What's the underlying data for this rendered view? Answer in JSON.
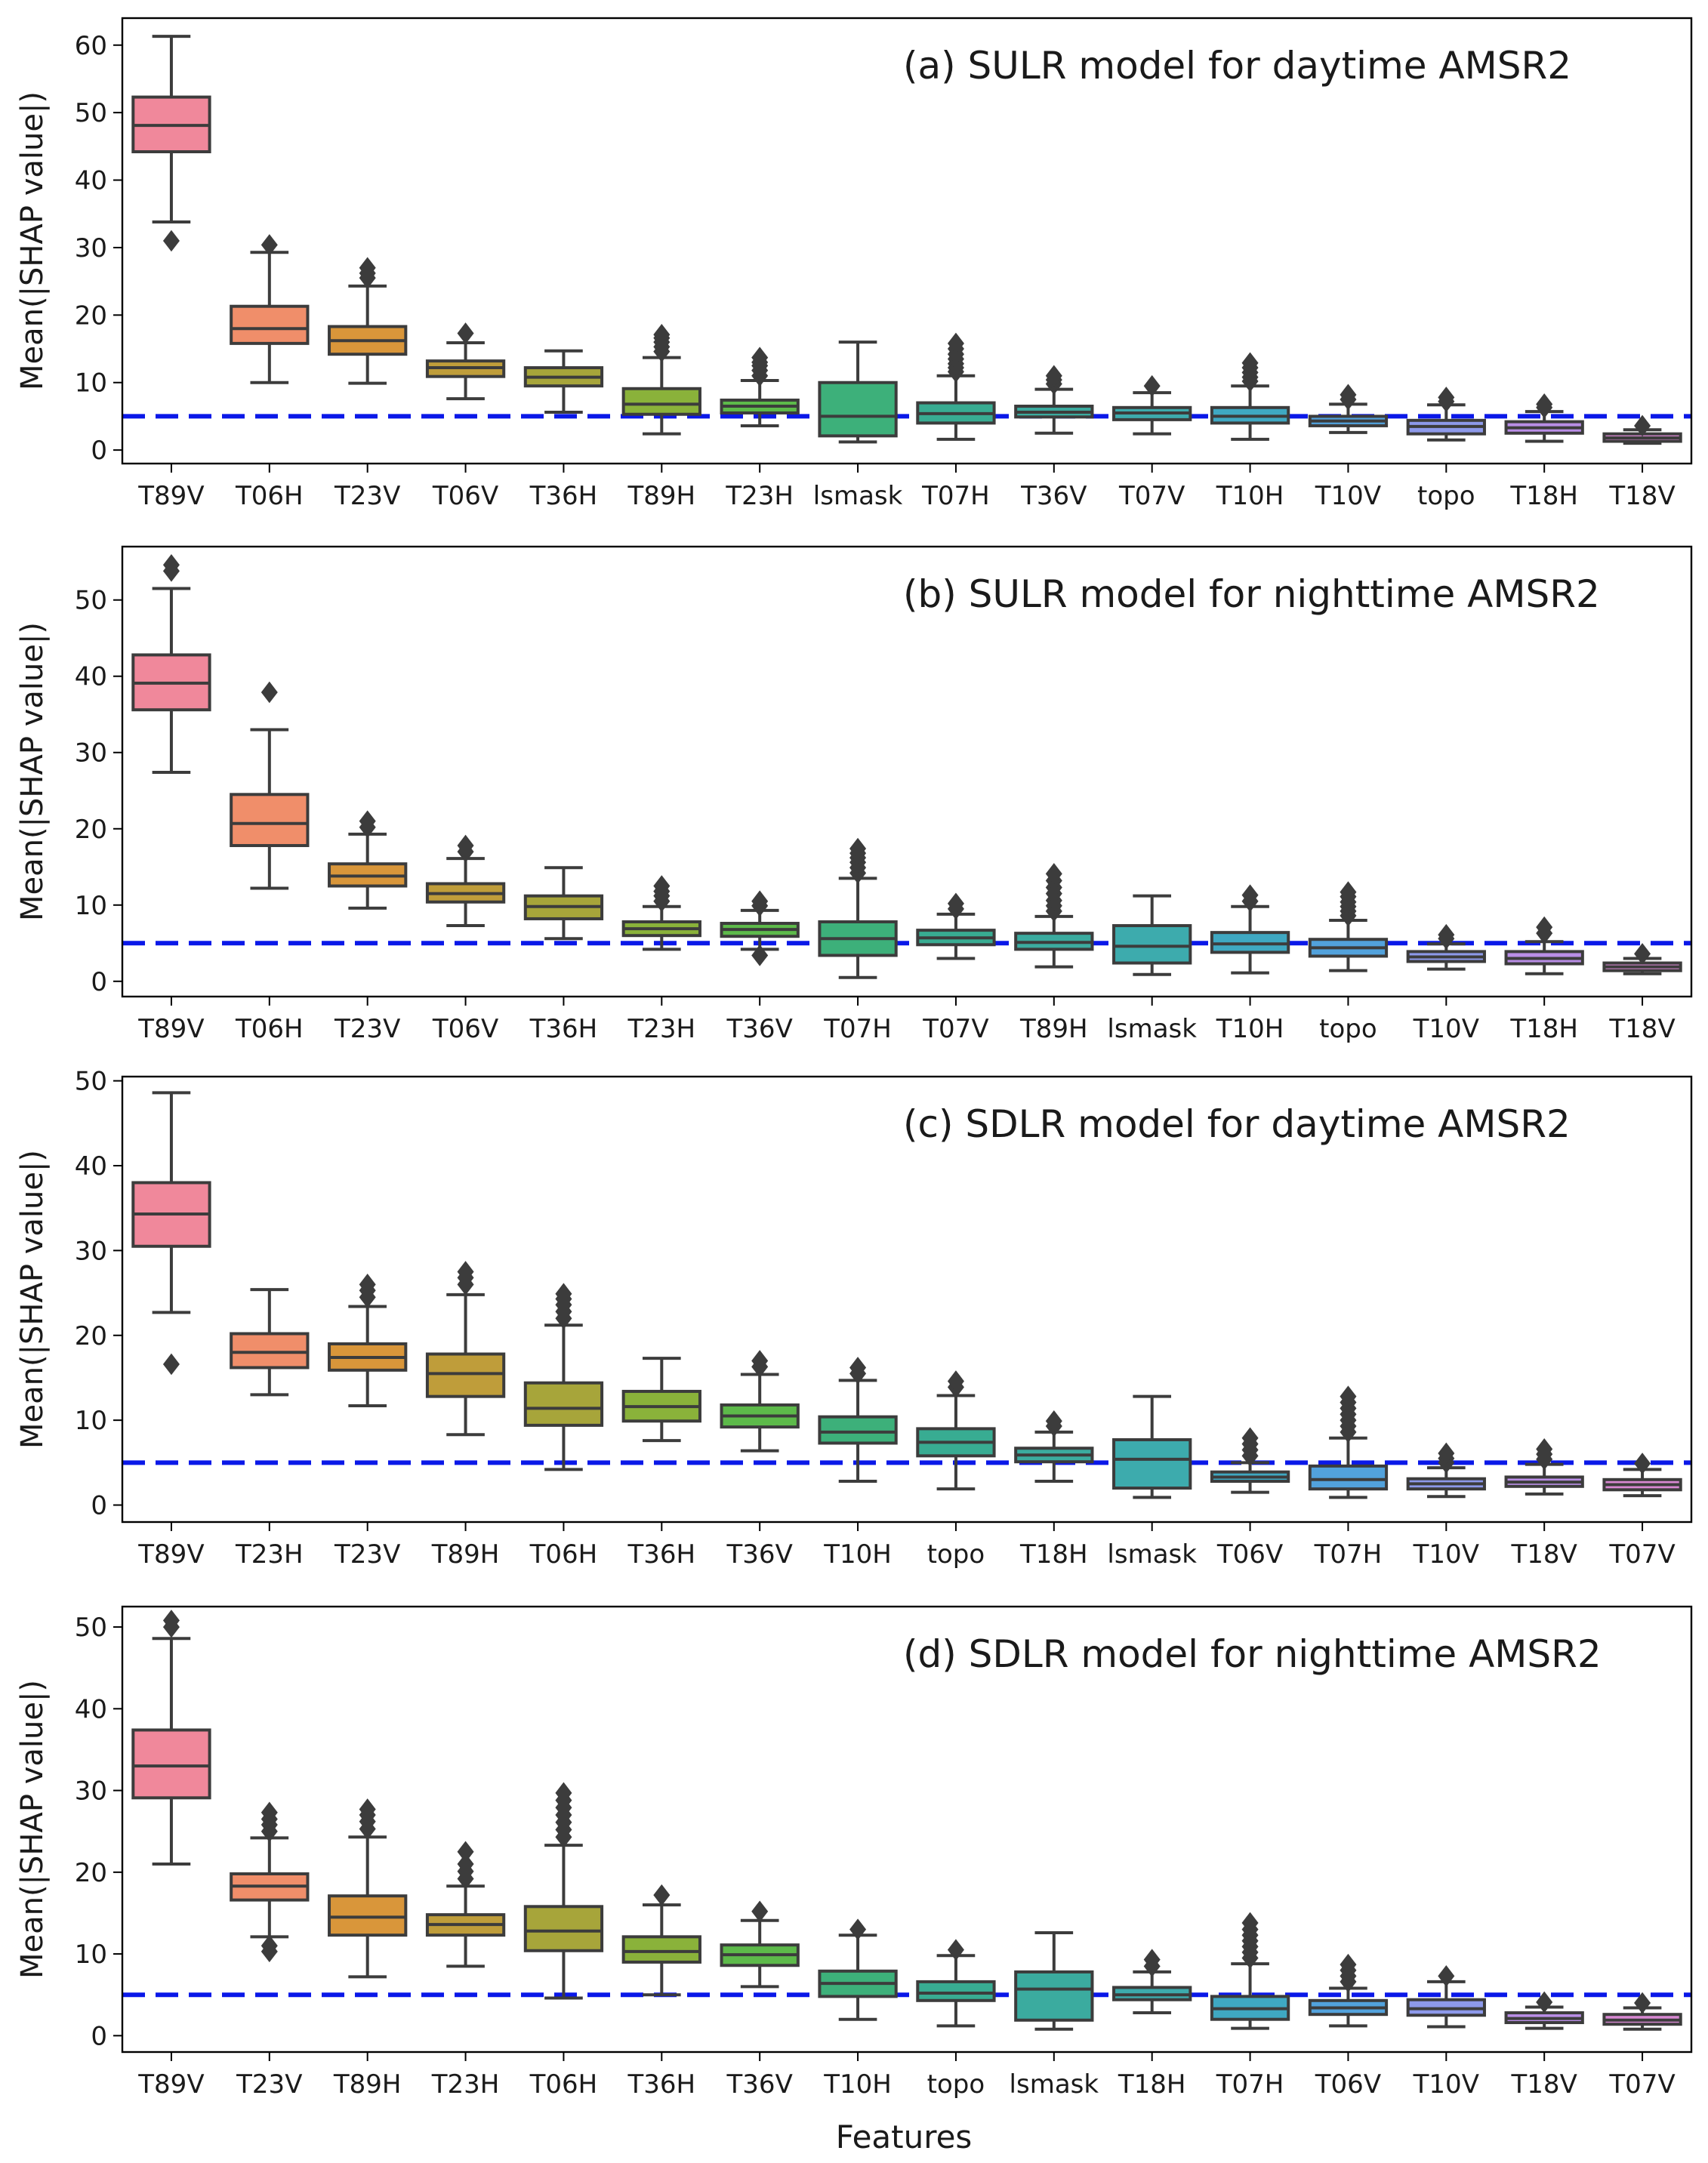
{
  "figure": {
    "xlabel": "Features",
    "reference_line": 5
  },
  "chart_data": [
    {
      "type": "box",
      "title": "(a) SULR model for daytime AMSR2",
      "xlabel": "",
      "ylabel": "Mean(|SHAP value|)",
      "ylim": [
        -2,
        64
      ],
      "yticks": [
        0,
        10,
        20,
        30,
        40,
        50,
        60
      ],
      "reference_line": 5,
      "categories": [
        "T89V",
        "T06H",
        "T23V",
        "T06V",
        "T36H",
        "T89H",
        "T23H",
        "lsmask",
        "T07H",
        "T36V",
        "T07V",
        "T10H",
        "T10V",
        "topo",
        "T18H",
        "T18V"
      ],
      "boxes": [
        {
          "min": 33.8,
          "q1": 44.2,
          "median": 48.1,
          "q3": 52.3,
          "max": 61.3,
          "fliers": [
            31.0
          ]
        },
        {
          "min": 10.0,
          "q1": 15.8,
          "median": 18.0,
          "q3": 21.3,
          "max": 29.3,
          "fliers": [
            30.4
          ]
        },
        {
          "min": 9.9,
          "q1": 14.2,
          "median": 16.2,
          "q3": 18.3,
          "max": 24.3,
          "fliers": [
            25.5,
            26.2,
            27.0
          ]
        },
        {
          "min": 7.6,
          "q1": 10.9,
          "median": 12.2,
          "q3": 13.2,
          "max": 15.9,
          "fliers": [
            17.3
          ]
        },
        {
          "min": 5.6,
          "q1": 9.5,
          "median": 10.8,
          "q3": 12.2,
          "max": 14.7,
          "fliers": []
        },
        {
          "min": 2.4,
          "q1": 5.3,
          "median": 6.8,
          "q3": 9.1,
          "max": 13.7,
          "fliers": [
            14.6,
            15.3,
            16.0,
            16.6,
            17.1
          ]
        },
        {
          "min": 3.6,
          "q1": 5.5,
          "median": 6.5,
          "q3": 7.4,
          "max": 10.3,
          "fliers": [
            11.0,
            11.8,
            12.5,
            13.0,
            13.7
          ]
        },
        {
          "min": 1.2,
          "q1": 2.1,
          "median": 5.0,
          "q3": 10.0,
          "max": 16.0,
          "fliers": []
        },
        {
          "min": 1.6,
          "q1": 4.0,
          "median": 5.4,
          "q3": 7.0,
          "max": 11.0,
          "fliers": [
            11.6,
            12.2,
            12.8,
            13.5,
            14.2,
            15.0,
            15.8
          ]
        },
        {
          "min": 2.5,
          "q1": 4.9,
          "median": 5.6,
          "q3": 6.5,
          "max": 9.0,
          "fliers": [
            9.8,
            10.4,
            11.0
          ]
        },
        {
          "min": 2.4,
          "q1": 4.5,
          "median": 5.5,
          "q3": 6.3,
          "max": 8.5,
          "fliers": [
            9.5
          ]
        },
        {
          "min": 1.6,
          "q1": 4.0,
          "median": 5.0,
          "q3": 6.3,
          "max": 9.5,
          "fliers": [
            10.2,
            10.8,
            11.5,
            12.2,
            12.9
          ]
        },
        {
          "min": 2.6,
          "q1": 3.6,
          "median": 4.3,
          "q3": 5.0,
          "max": 6.8,
          "fliers": [
            7.5,
            8.2
          ]
        },
        {
          "min": 1.5,
          "q1": 2.4,
          "median": 3.5,
          "q3": 4.4,
          "max": 6.7,
          "fliers": [
            7.2,
            7.8
          ]
        },
        {
          "min": 1.3,
          "q1": 2.5,
          "median": 3.3,
          "q3": 4.2,
          "max": 5.7,
          "fliers": [
            6.3,
            6.8
          ]
        },
        {
          "min": 1.0,
          "q1": 1.3,
          "median": 1.8,
          "q3": 2.4,
          "max": 3.0,
          "fliers": [
            3.6
          ]
        }
      ],
      "colors": [
        "#f0889b",
        "#f08e6a",
        "#d9963a",
        "#bf9d3a",
        "#a7a53a",
        "#8ab23a",
        "#5dba4a",
        "#3db07a",
        "#38ac92",
        "#3bab9f",
        "#3dabad",
        "#3fa8c2",
        "#52a2dc",
        "#8d99ea",
        "#b98ee6",
        "#d888d2"
      ]
    },
    {
      "type": "box",
      "title": "(b) SULR model for nighttime AMSR2",
      "xlabel": "",
      "ylabel": "Mean(|SHAP value|)",
      "ylim": [
        -2,
        57
      ],
      "yticks": [
        0,
        10,
        20,
        30,
        40,
        50
      ],
      "reference_line": 5,
      "categories": [
        "T89V",
        "T06H",
        "T23V",
        "T06V",
        "T36H",
        "T23H",
        "T36V",
        "T07H",
        "T07V",
        "T89H",
        "lsmask",
        "T10H",
        "topo",
        "T10V",
        "T18H",
        "T18V"
      ],
      "boxes": [
        {
          "min": 27.4,
          "q1": 35.6,
          "median": 39.1,
          "q3": 42.8,
          "max": 51.5,
          "fliers": [
            53.8,
            54.6
          ]
        },
        {
          "min": 12.2,
          "q1": 17.8,
          "median": 20.7,
          "q3": 24.5,
          "max": 33.0,
          "fliers": [
            37.9
          ]
        },
        {
          "min": 9.6,
          "q1": 12.5,
          "median": 13.8,
          "q3": 15.4,
          "max": 19.3,
          "fliers": [
            20.2,
            21.0
          ]
        },
        {
          "min": 7.3,
          "q1": 10.4,
          "median": 11.5,
          "q3": 12.8,
          "max": 16.1,
          "fliers": [
            17.0,
            17.8
          ]
        },
        {
          "min": 5.6,
          "q1": 8.2,
          "median": 9.8,
          "q3": 11.2,
          "max": 14.9,
          "fliers": []
        },
        {
          "min": 4.2,
          "q1": 6.0,
          "median": 6.9,
          "q3": 7.8,
          "max": 9.8,
          "fliers": [
            10.5,
            11.2,
            11.8,
            12.5
          ]
        },
        {
          "min": 4.2,
          "q1": 5.9,
          "median": 6.8,
          "q3": 7.6,
          "max": 9.3,
          "fliers": [
            3.4,
            9.9,
            10.5
          ]
        },
        {
          "min": 0.5,
          "q1": 3.4,
          "median": 5.6,
          "q3": 7.8,
          "max": 13.5,
          "fliers": [
            14.2,
            14.9,
            15.6,
            16.2,
            16.8,
            17.4
          ]
        },
        {
          "min": 3.0,
          "q1": 4.8,
          "median": 5.7,
          "q3": 6.7,
          "max": 8.8,
          "fliers": [
            9.5,
            10.2
          ]
        },
        {
          "min": 1.9,
          "q1": 4.2,
          "median": 5.1,
          "q3": 6.3,
          "max": 8.5,
          "fliers": [
            9.2,
            9.9,
            10.6,
            11.5,
            12.3,
            13.2,
            14.1
          ]
        },
        {
          "min": 0.9,
          "q1": 2.4,
          "median": 4.6,
          "q3": 7.3,
          "max": 11.2,
          "fliers": []
        },
        {
          "min": 1.1,
          "q1": 3.8,
          "median": 4.9,
          "q3": 6.4,
          "max": 9.8,
          "fliers": [
            10.5,
            11.3
          ]
        },
        {
          "min": 1.4,
          "q1": 3.3,
          "median": 4.4,
          "q3": 5.5,
          "max": 8.0,
          "fliers": [
            8.6,
            9.2,
            9.8,
            10.4,
            11.1,
            11.7
          ]
        },
        {
          "min": 1.6,
          "q1": 2.6,
          "median": 3.2,
          "q3": 3.9,
          "max": 4.9,
          "fliers": [
            5.6,
            6.1
          ]
        },
        {
          "min": 1.0,
          "q1": 2.3,
          "median": 3.0,
          "q3": 3.9,
          "max": 5.2,
          "fliers": [
            6.3,
            7.1
          ]
        },
        {
          "min": 1.0,
          "q1": 1.4,
          "median": 1.9,
          "q3": 2.4,
          "max": 3.0,
          "fliers": [
            3.6
          ]
        }
      ],
      "colors": [
        "#f0889b",
        "#f08e6a",
        "#d9963a",
        "#bf9d3a",
        "#a7a53a",
        "#8ab23a",
        "#5dba4a",
        "#3db07a",
        "#38ac92",
        "#3bab9f",
        "#3dabad",
        "#3fa8c2",
        "#52a2dc",
        "#8d99ea",
        "#b98ee6",
        "#d888d2"
      ]
    },
    {
      "type": "box",
      "title": "(c) SDLR model for daytime AMSR2",
      "xlabel": "",
      "ylabel": "Mean(|SHAP value|)",
      "ylim": [
        -2,
        50.5
      ],
      "yticks": [
        0,
        10,
        20,
        30,
        40,
        50
      ],
      "reference_line": 5,
      "categories": [
        "T89V",
        "T23H",
        "T23V",
        "T89H",
        "T06H",
        "T36H",
        "T36V",
        "T10H",
        "topo",
        "T18H",
        "lsmask",
        "T06V",
        "T07H",
        "T10V",
        "T18V",
        "T07V"
      ],
      "boxes": [
        {
          "min": 22.7,
          "q1": 30.5,
          "median": 34.3,
          "q3": 38.0,
          "max": 48.6,
          "fliers": [
            16.6
          ]
        },
        {
          "min": 13.0,
          "q1": 16.2,
          "median": 18.0,
          "q3": 20.2,
          "max": 25.4,
          "fliers": []
        },
        {
          "min": 11.7,
          "q1": 15.9,
          "median": 17.4,
          "q3": 19.0,
          "max": 23.4,
          "fliers": [
            24.5,
            25.3,
            26.0
          ]
        },
        {
          "min": 8.3,
          "q1": 12.8,
          "median": 15.5,
          "q3": 17.8,
          "max": 24.8,
          "fliers": [
            26.0,
            26.8,
            27.5
          ]
        },
        {
          "min": 4.2,
          "q1": 9.4,
          "median": 11.4,
          "q3": 14.4,
          "max": 21.2,
          "fliers": [
            22.0,
            22.8,
            23.6,
            24.3,
            24.9
          ]
        },
        {
          "min": 7.6,
          "q1": 9.9,
          "median": 11.6,
          "q3": 13.4,
          "max": 17.3,
          "fliers": []
        },
        {
          "min": 6.4,
          "q1": 9.2,
          "median": 10.5,
          "q3": 11.8,
          "max": 15.4,
          "fliers": [
            16.3,
            17.0
          ]
        },
        {
          "min": 2.8,
          "q1": 7.3,
          "median": 8.6,
          "q3": 10.4,
          "max": 14.7,
          "fliers": [
            15.5,
            16.2
          ]
        },
        {
          "min": 1.9,
          "q1": 5.8,
          "median": 7.4,
          "q3": 9.0,
          "max": 12.9,
          "fliers": [
            13.9,
            14.6
          ]
        },
        {
          "min": 2.8,
          "q1": 5.1,
          "median": 5.9,
          "q3": 6.7,
          "max": 8.6,
          "fliers": [
            9.3,
            9.9
          ]
        },
        {
          "min": 0.9,
          "q1": 2.0,
          "median": 5.4,
          "q3": 7.7,
          "max": 12.8,
          "fliers": []
        },
        {
          "min": 1.5,
          "q1": 2.8,
          "median": 3.3,
          "q3": 3.9,
          "max": 5.0,
          "fliers": [
            5.8,
            6.5,
            7.2,
            7.9
          ]
        },
        {
          "min": 0.9,
          "q1": 1.9,
          "median": 3.0,
          "q3": 4.6,
          "max": 7.9,
          "fliers": [
            8.6,
            9.3,
            10.0,
            10.7,
            11.4,
            12.1,
            12.8
          ]
        },
        {
          "min": 1.0,
          "q1": 1.9,
          "median": 2.5,
          "q3": 3.1,
          "max": 4.4,
          "fliers": [
            5.0,
            5.5,
            6.1
          ]
        },
        {
          "min": 1.3,
          "q1": 2.2,
          "median": 2.7,
          "q3": 3.3,
          "max": 4.8,
          "fliers": [
            5.4,
            6.0,
            6.6
          ]
        },
        {
          "min": 1.1,
          "q1": 1.8,
          "median": 2.4,
          "q3": 3.0,
          "max": 4.2,
          "fliers": [
            4.9
          ]
        }
      ],
      "colors": [
        "#f0889b",
        "#f08e6a",
        "#d9963a",
        "#bf9d3a",
        "#a7a53a",
        "#8ab23a",
        "#5dba4a",
        "#3db07a",
        "#38ac92",
        "#3bab9f",
        "#3dabad",
        "#3fa8c2",
        "#52a2dc",
        "#8d99ea",
        "#b98ee6",
        "#d888d2"
      ]
    },
    {
      "type": "box",
      "title": "(d) SDLR model for nighttime AMSR2",
      "xlabel": "Features",
      "ylabel": "Mean(|SHAP value|)",
      "ylim": [
        -2,
        52.5
      ],
      "yticks": [
        0,
        10,
        20,
        30,
        40,
        50
      ],
      "reference_line": 5,
      "categories": [
        "T89V",
        "T23V",
        "T89H",
        "T23H",
        "T06H",
        "T36H",
        "T36V",
        "T10H",
        "topo",
        "lsmask",
        "T18H",
        "T07H",
        "T06V",
        "T10V",
        "T18V",
        "T07V"
      ],
      "boxes": [
        {
          "min": 21.0,
          "q1": 29.1,
          "median": 33.0,
          "q3": 37.4,
          "max": 48.6,
          "fliers": [
            50.0,
            50.8
          ]
        },
        {
          "min": 12.1,
          "q1": 16.6,
          "median": 18.3,
          "q3": 19.8,
          "max": 24.2,
          "fliers": [
            10.3,
            11.0,
            25.0,
            25.8,
            26.5,
            27.3
          ]
        },
        {
          "min": 7.2,
          "q1": 12.3,
          "median": 14.5,
          "q3": 17.1,
          "max": 24.3,
          "fliers": [
            25.3,
            26.2,
            27.0,
            27.7
          ]
        },
        {
          "min": 8.5,
          "q1": 12.3,
          "median": 13.6,
          "q3": 14.8,
          "max": 18.3,
          "fliers": [
            19.2,
            20.1,
            21.0,
            22.5
          ]
        },
        {
          "min": 4.6,
          "q1": 10.4,
          "median": 12.8,
          "q3": 15.8,
          "max": 23.3,
          "fliers": [
            24.3,
            25.2,
            26.1,
            27.0,
            27.9,
            28.8,
            29.7
          ]
        },
        {
          "min": 5.0,
          "q1": 9.0,
          "median": 10.3,
          "q3": 12.1,
          "max": 16.0,
          "fliers": [
            17.2
          ]
        },
        {
          "min": 6.0,
          "q1": 8.6,
          "median": 9.9,
          "q3": 11.1,
          "max": 14.1,
          "fliers": [
            15.2
          ]
        },
        {
          "min": 2.0,
          "q1": 4.8,
          "median": 6.4,
          "q3": 7.9,
          "max": 12.3,
          "fliers": [
            13.0
          ]
        },
        {
          "min": 1.2,
          "q1": 4.3,
          "median": 5.2,
          "q3": 6.6,
          "max": 9.8,
          "fliers": [
            10.5
          ]
        },
        {
          "min": 0.8,
          "q1": 1.9,
          "median": 5.7,
          "q3": 7.8,
          "max": 12.6,
          "fliers": []
        },
        {
          "min": 2.8,
          "q1": 4.4,
          "median": 5.0,
          "q3": 5.9,
          "max": 7.8,
          "fliers": [
            8.5,
            9.3
          ]
        },
        {
          "min": 0.9,
          "q1": 2.0,
          "median": 3.3,
          "q3": 4.8,
          "max": 8.8,
          "fliers": [
            9.5,
            10.2,
            10.9,
            11.6,
            12.3,
            13.0,
            13.8
          ]
        },
        {
          "min": 1.2,
          "q1": 2.6,
          "median": 3.4,
          "q3": 4.3,
          "max": 5.8,
          "fliers": [
            6.6,
            7.3,
            8.0,
            8.7
          ]
        },
        {
          "min": 1.1,
          "q1": 2.5,
          "median": 3.3,
          "q3": 4.4,
          "max": 6.6,
          "fliers": [
            7.3
          ]
        },
        {
          "min": 0.9,
          "q1": 1.6,
          "median": 2.1,
          "q3": 2.8,
          "max": 3.5,
          "fliers": [
            4.1
          ]
        },
        {
          "min": 0.8,
          "q1": 1.4,
          "median": 1.9,
          "q3": 2.6,
          "max": 3.4,
          "fliers": [
            4.0
          ]
        }
      ],
      "colors": [
        "#f0889b",
        "#f08e6a",
        "#d9963a",
        "#bf9d3a",
        "#a7a53a",
        "#8ab23a",
        "#5dba4a",
        "#3db07a",
        "#38ac92",
        "#3bab9f",
        "#3dabad",
        "#3fa8c2",
        "#52a2dc",
        "#8d99ea",
        "#b98ee6",
        "#d888d2"
      ]
    }
  ]
}
